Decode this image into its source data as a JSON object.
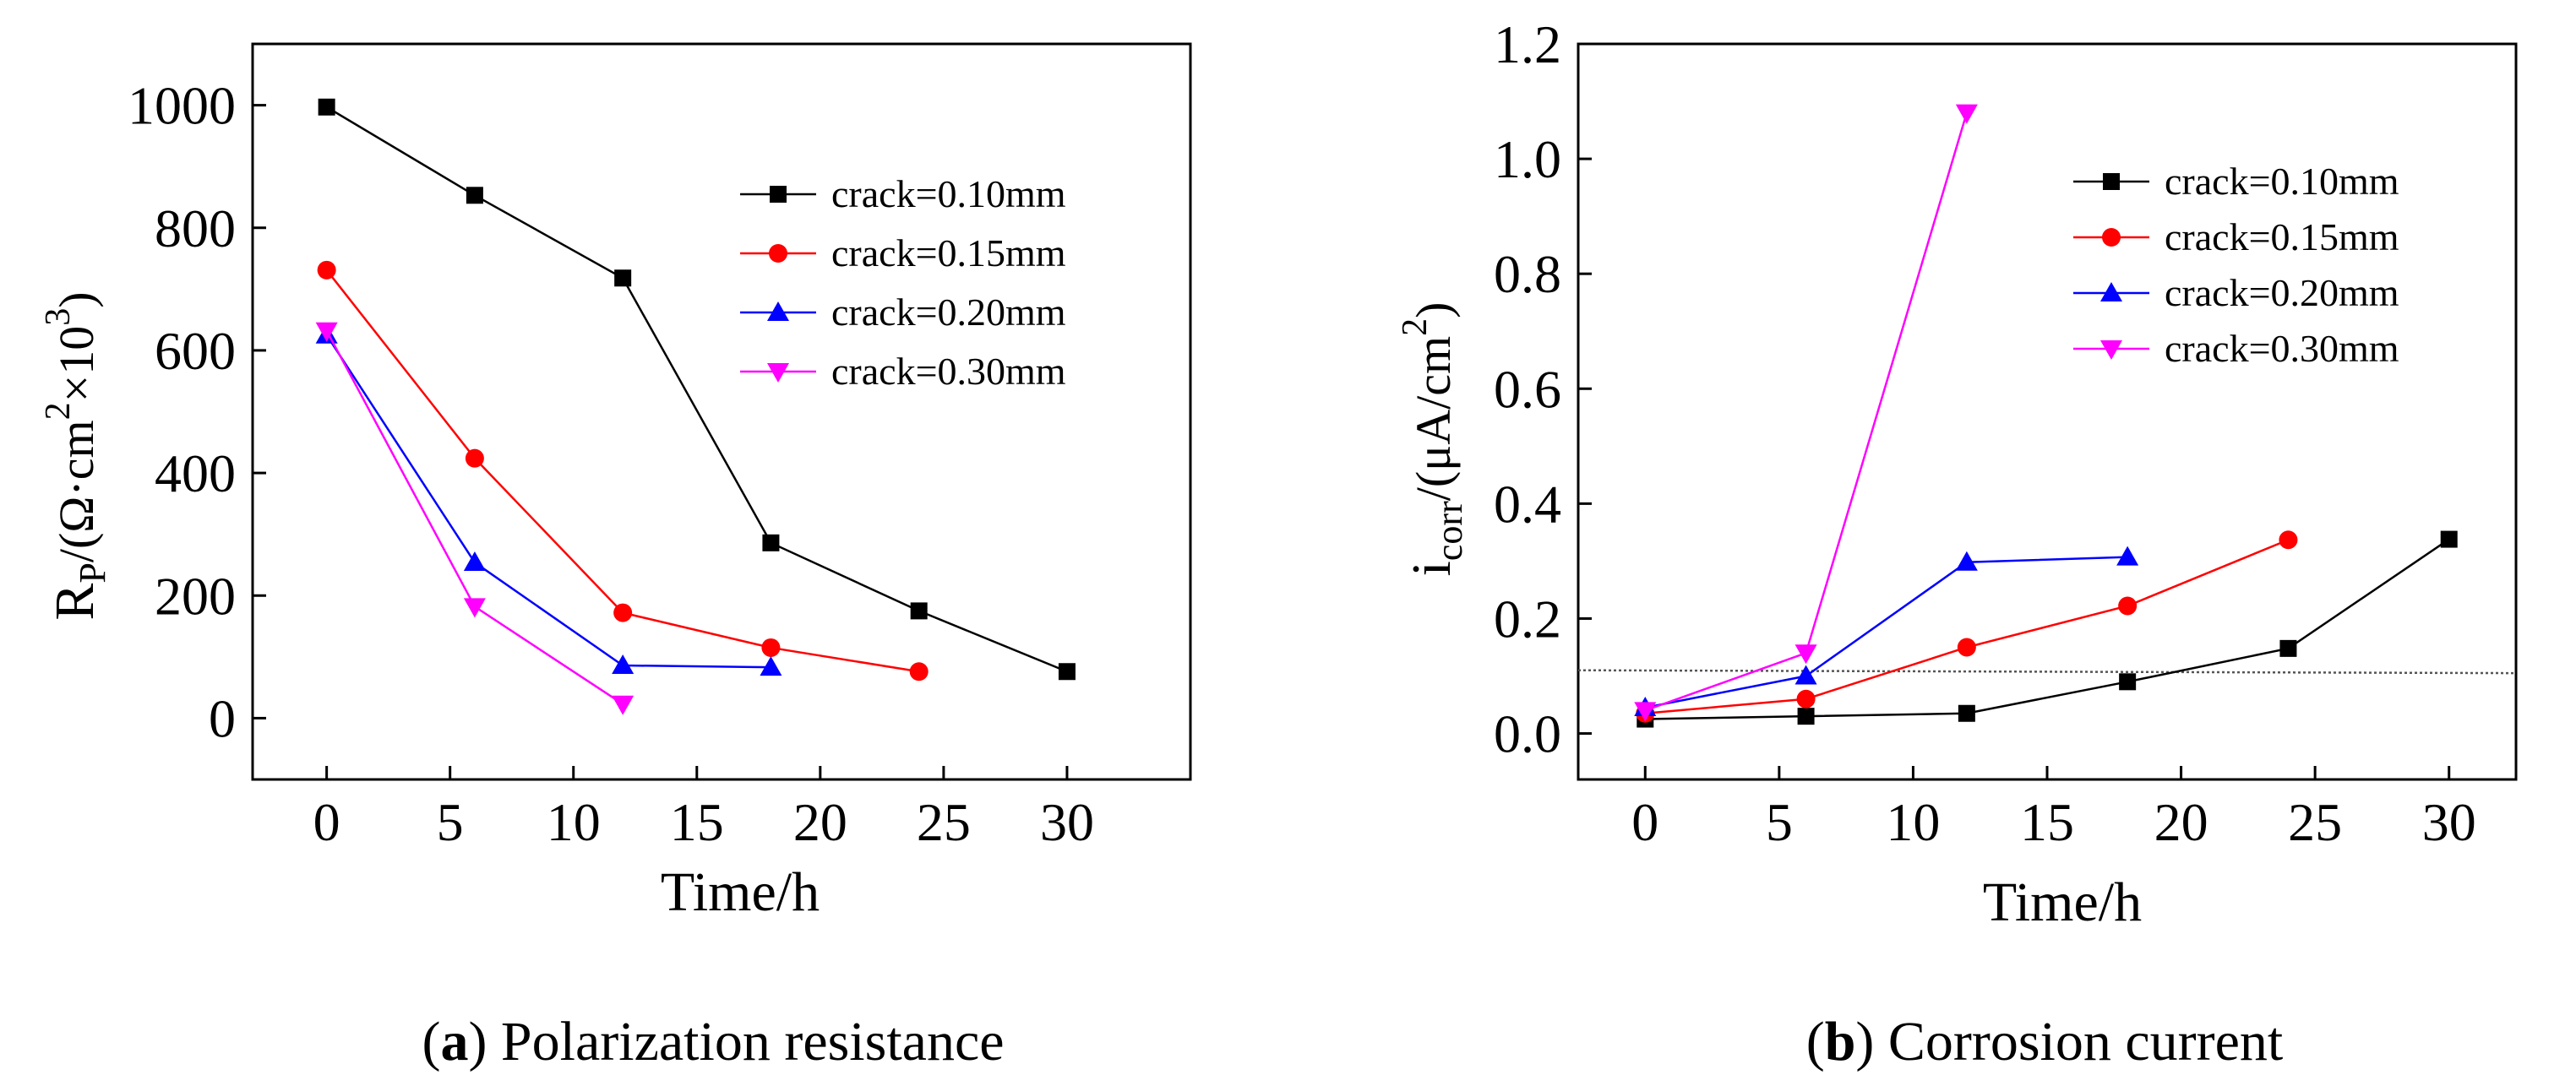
{
  "colors": {
    "black": "#000000",
    "red": "#ff0000",
    "blue": "#0000ff",
    "magenta": "#ff00ff",
    "ref_line": "#555555"
  },
  "captions": {
    "a": {
      "letter": "a",
      "text": " Polarization resistance"
    },
    "b": {
      "letter": "b",
      "text": " Corrosion current"
    }
  },
  "ylabels": {
    "a": {
      "main": "R",
      "sub": "P",
      "mid": "/(Ω·cm",
      "sup1": "2",
      "mid2": "×10",
      "sup2": "3",
      "end": ")"
    },
    "b": {
      "main": "i",
      "sub": "corr",
      "mid": "/(μA/cm",
      "sup1": "2",
      "end": ")"
    }
  },
  "chart_data": [
    {
      "id": "a",
      "type": "line",
      "title": "Polarization resistance",
      "xlabel": "Time/h",
      "ylabel": "RP/(Ω·cm2×103)",
      "xlim": [
        -3,
        35
      ],
      "ylim": [
        -100,
        1100
      ],
      "xticks": [
        0,
        5,
        10,
        15,
        20,
        25,
        30
      ],
      "yticks": [
        0,
        200,
        400,
        600,
        800,
        1000
      ],
      "xtick_labels": [
        "0",
        "5",
        "10",
        "15",
        "20",
        "25",
        "30"
      ],
      "ytick_labels": [
        "0",
        "200",
        "400",
        "600",
        "800",
        "1000"
      ],
      "legend_position": "top-right",
      "series": [
        {
          "name": "crack=0.10mm",
          "color": "#000000",
          "marker": "square",
          "x": [
            0,
            6,
            12,
            18,
            24,
            30
          ],
          "y": [
            997,
            853,
            718,
            286,
            175,
            76
          ]
        },
        {
          "name": "crack=0.15mm",
          "color": "#ff0000",
          "marker": "circle",
          "x": [
            0,
            6,
            12,
            18,
            24
          ],
          "y": [
            731,
            424,
            172,
            115,
            76
          ]
        },
        {
          "name": "crack=0.20mm",
          "color": "#0000ff",
          "marker": "triangle-up",
          "x": [
            0,
            6,
            12,
            18
          ],
          "y": [
            625,
            254,
            86,
            83
          ]
        },
        {
          "name": "crack=0.30mm",
          "color": "#ff00ff",
          "marker": "triangle-down",
          "x": [
            0,
            6,
            12
          ],
          "y": [
            632,
            182,
            23
          ]
        }
      ]
    },
    {
      "id": "b",
      "type": "line",
      "title": "Corrosion current",
      "xlabel": "Time/h",
      "ylabel": "icorr/(μA/cm2)",
      "xlim": [
        -2.5,
        32.5
      ],
      "ylim": [
        -0.08,
        1.2
      ],
      "xticks": [
        0,
        5,
        10,
        15,
        20,
        25,
        30
      ],
      "yticks": [
        0,
        0.2,
        0.4,
        0.6,
        0.8,
        1.0,
        1.2
      ],
      "xtick_labels": [
        "0",
        "5",
        "10",
        "15",
        "20",
        "25",
        "30"
      ],
      "ytick_labels": [
        "0.0",
        "0.2",
        "0.4",
        "0.6",
        "0.8",
        "1.0",
        "1.2"
      ],
      "legend_position": "top-right",
      "reference_line": {
        "y_start": 0.11,
        "y_end": 0.105,
        "style": "dotted"
      },
      "series": [
        {
          "name": "crack=0.10mm",
          "color": "#000000",
          "marker": "square",
          "x": [
            0,
            6,
            12,
            18,
            24,
            30
          ],
          "y": [
            0.025,
            0.03,
            0.035,
            0.09,
            0.148,
            0.338
          ]
        },
        {
          "name": "crack=0.15mm",
          "color": "#ff0000",
          "marker": "circle",
          "x": [
            0,
            6,
            12,
            18,
            24
          ],
          "y": [
            0.035,
            0.06,
            0.15,
            0.222,
            0.337
          ]
        },
        {
          "name": "crack=0.20mm",
          "color": "#0000ff",
          "marker": "triangle-up",
          "x": [
            0,
            6,
            12,
            18
          ],
          "y": [
            0.045,
            0.1,
            0.298,
            0.307
          ]
        },
        {
          "name": "crack=0.30mm",
          "color": "#ff00ff",
          "marker": "triangle-down",
          "x": [
            0,
            6,
            12
          ],
          "y": [
            0.04,
            0.14,
            1.08
          ]
        }
      ]
    }
  ]
}
